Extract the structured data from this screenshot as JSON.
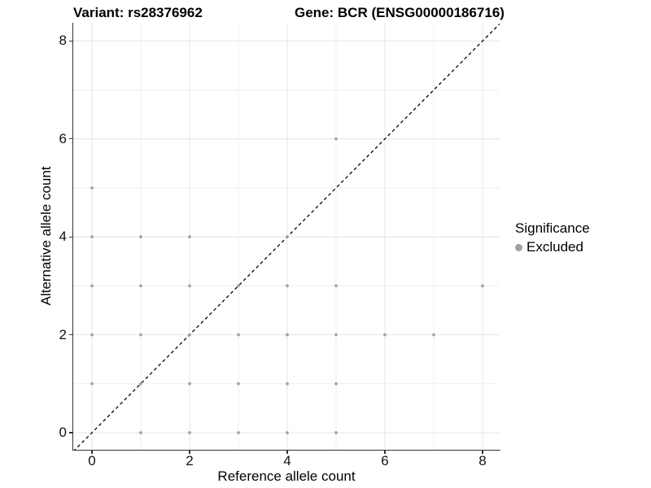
{
  "titles": {
    "variant": "Variant: rs28376962",
    "gene": "Gene: BCR (ENSG00000186716)"
  },
  "legend": {
    "title": "Significance",
    "items": [
      {
        "label": "Excluded",
        "color": "#9f9f9f"
      }
    ]
  },
  "colors": {
    "point": "#9f9f9f",
    "grid_major": "#e4e4e4",
    "grid_minor": "#efefef",
    "axis_line": "#333333",
    "diagonal": "#000000",
    "background": "#ffffff"
  },
  "chart_data": {
    "type": "scatter",
    "title": "Variant: rs28376962 | Gene: BCR (ENSG00000186716)",
    "xlabel": "Reference allele count",
    "ylabel": "Alternative allele count",
    "xlim": [
      -0.38,
      8.35
    ],
    "ylim": [
      -0.35,
      8.36
    ],
    "x_tick_values": [
      0,
      2,
      4,
      6,
      8
    ],
    "x_tick_labels": [
      "0",
      "2",
      "4",
      "6",
      "8"
    ],
    "y_tick_values": [
      0,
      2,
      4,
      6,
      8
    ],
    "y_tick_labels": [
      "0",
      "2",
      "4",
      "6",
      "8"
    ],
    "grid_major_values": [
      0,
      2,
      4,
      6,
      8
    ],
    "grid_minor_values": [
      1,
      3,
      5,
      7
    ],
    "grid": true,
    "legend_position": "right",
    "diagonal_line": {
      "type": "identity",
      "style": "dashed",
      "from": [
        -0.38,
        -0.38
      ],
      "to": [
        8.35,
        8.35
      ]
    },
    "series": [
      {
        "name": "Excluded",
        "color": "#9f9f9f",
        "points": [
          [
            0,
            1
          ],
          [
            0,
            2
          ],
          [
            0,
            3
          ],
          [
            0,
            4
          ],
          [
            0,
            5
          ],
          [
            1,
            0
          ],
          [
            1,
            1
          ],
          [
            1,
            2
          ],
          [
            1,
            3
          ],
          [
            1,
            4
          ],
          [
            2,
            0
          ],
          [
            2,
            1
          ],
          [
            2,
            2
          ],
          [
            2,
            3
          ],
          [
            2,
            4
          ],
          [
            3,
            0
          ],
          [
            3,
            1
          ],
          [
            3,
            2
          ],
          [
            3,
            3
          ],
          [
            4,
            0
          ],
          [
            4,
            1
          ],
          [
            4,
            2
          ],
          [
            4,
            3
          ],
          [
            4,
            4
          ],
          [
            5,
            0
          ],
          [
            5,
            1
          ],
          [
            5,
            2
          ],
          [
            5,
            3
          ],
          [
            5,
            6
          ],
          [
            6,
            2
          ],
          [
            7,
            2
          ],
          [
            8,
            3
          ]
        ]
      }
    ]
  }
}
